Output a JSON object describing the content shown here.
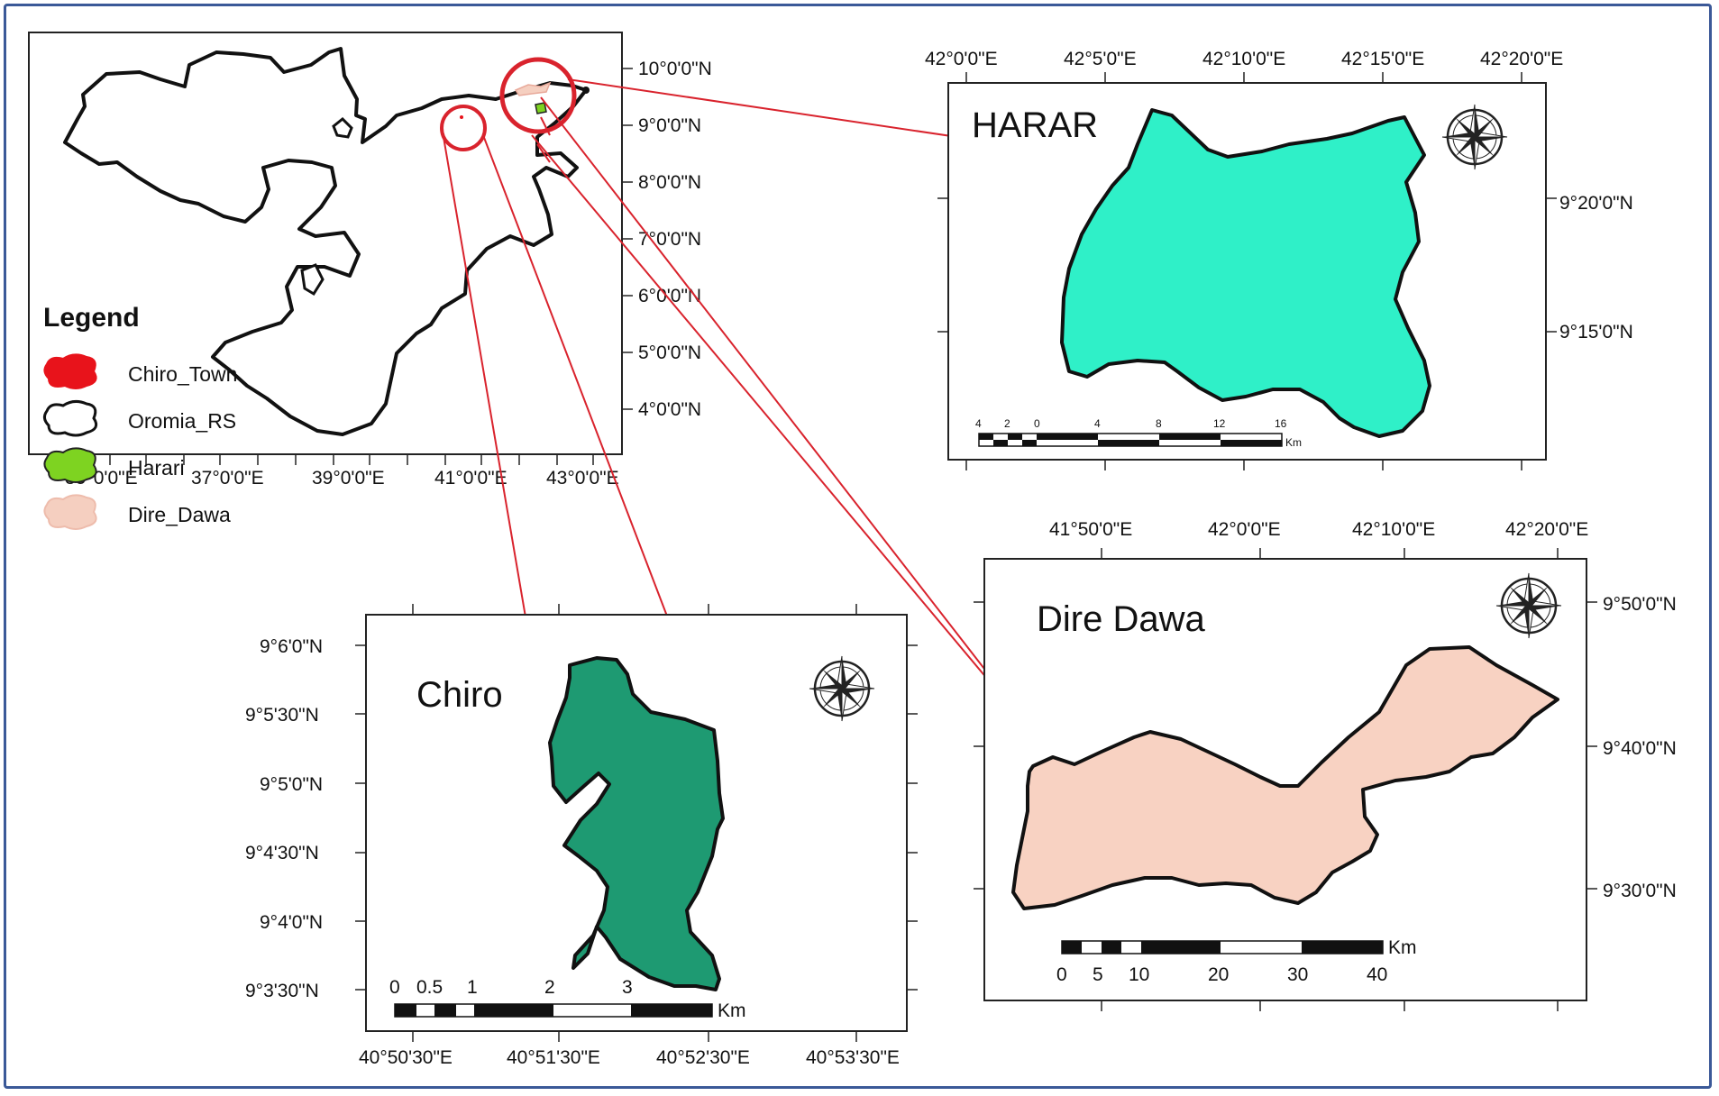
{
  "overview_map": {
    "lat_labels": [
      "10°0'0\"N",
      "9°0'0\"N",
      "8°0'0\"N",
      "7°0'0\"N",
      "6°0'0\"N",
      "5°0'0\"N",
      "4°0'0\"N"
    ],
    "lon_labels": [
      "35°0'0\"E",
      "37°0'0\"E",
      "39°0'0\"E",
      "41°0'0\"E",
      "43°0'0\"E"
    ],
    "legend": {
      "title": "Legend",
      "items": [
        {
          "label": "Chiro_Town",
          "color": "#e8131b"
        },
        {
          "label": "Oromia_RS",
          "color": "#ffffff"
        },
        {
          "label": "Harari",
          "color": "#7ed321"
        },
        {
          "label": "Dire_Dawa",
          "color": "#f5cfc0"
        }
      ]
    }
  },
  "harar_map": {
    "title": "HARAR",
    "fill": "#2ff0c8",
    "lon_labels": [
      "42°0'0\"E",
      "42°5'0\"E",
      "42°10'0\"E",
      "42°15'0\"E",
      "42°20'0\"E"
    ],
    "lat_labels": [
      "9°20'0\"N",
      "9°15'0\"N"
    ],
    "scale": {
      "ticks": [
        "4",
        "2",
        "0",
        "4",
        "8",
        "12",
        "16"
      ],
      "unit": "Km"
    }
  },
  "dire_dawa_map": {
    "title": "Dire Dawa",
    "fill": "#f8d2c2",
    "lon_labels": [
      "41°50'0\"E",
      "42°0'0\"E",
      "42°10'0\"E",
      "42°20'0\"E"
    ],
    "lat_labels": [
      "9°50'0\"N",
      "9°40'0\"N",
      "9°30'0\"N"
    ],
    "scale": {
      "ticks": [
        "0",
        "5",
        "10",
        "20",
        "30",
        "40"
      ],
      "unit": "Km"
    }
  },
  "chiro_map": {
    "title": "Chiro",
    "fill": "#1e9a72",
    "lat_labels": [
      "9°6'0\"N",
      "9°5'30\"N",
      "9°5'0\"N",
      "9°4'30\"N",
      "9°4'0\"N",
      "9°3'30\"N"
    ],
    "lon_labels": [
      "40°50'30\"E",
      "40°51'30\"E",
      "40°52'30\"E",
      "40°53'30\"E"
    ],
    "scale": {
      "ticks": [
        "0",
        "0.5",
        "1",
        "2",
        "3"
      ],
      "unit": "Km"
    }
  },
  "highlight_color": "#d9232d"
}
